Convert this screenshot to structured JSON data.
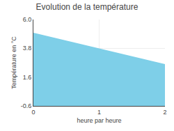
{
  "chart_data": {
    "type": "area",
    "title": "Evolution de la température",
    "xlabel": "heure par heure",
    "ylabel": "Température en °C",
    "x": [
      0,
      2
    ],
    "values": [
      4.95,
      2.55
    ],
    "color": "#7ecfe8",
    "xlim": [
      0,
      2
    ],
    "xticks": [
      0,
      1,
      2
    ],
    "ylim": [
      -0.6,
      6.0
    ],
    "yticks": [
      -0.6,
      1.6,
      3.8,
      {
        "value": 6.0,
        "label": "6.0"
      }
    ],
    "grid": true
  }
}
